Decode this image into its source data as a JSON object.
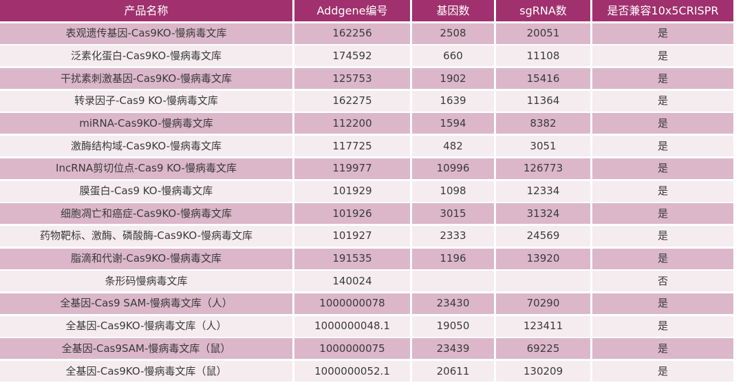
{
  "colors": {
    "header_bg": "#a0316e",
    "header_text": "#ffffff",
    "row_band_bg": "#dbb7c9",
    "row_alt_bg": "#f5ecf0",
    "body_text": "#3a3a3a"
  },
  "chart_data": {
    "type": "table",
    "columns": [
      "产品名称",
      "Addgene编号",
      "基因数",
      "sgRNA数",
      "是否兼容10x5CRISPR"
    ],
    "rows": [
      [
        "表观遗传基因-Cas9KO-慢病毒文库",
        "162256",
        "2508",
        "20051",
        "是"
      ],
      [
        "泛素化蛋白-Cas9KO-慢病毒文库",
        "174592",
        "660",
        "11108",
        "是"
      ],
      [
        "干扰素刺激基因-Cas9KO-慢病毒文库",
        "125753",
        "1902",
        "15416",
        "是"
      ],
      [
        "转录因子-Cas9 KO-慢病毒文库",
        "162275",
        "1639",
        "11364",
        "是"
      ],
      [
        "miRNA-Cas9KO-慢病毒文库",
        "112200",
        "1594",
        "8382",
        "是"
      ],
      [
        "激酶结构域-Cas9KO-慢病毒文库",
        "117725",
        "482",
        "3051",
        "是"
      ],
      [
        "IncRNA剪切位点-Cas9 KO-慢病毒文库",
        "119977",
        "10996",
        "126773",
        "是"
      ],
      [
        "膜蛋白-Cas9 KO-慢病毒文库",
        "101929",
        "1098",
        "12334",
        "是"
      ],
      [
        "细胞凋亡和癌症-Cas9KO-慢病毒文库",
        "101926",
        "3015",
        "31324",
        "是"
      ],
      [
        "药物靶标、激酶、磷酸酶-Cas9KO-慢病毒文库",
        "101927",
        "2333",
        "24569",
        "是"
      ],
      [
        "脂滴和代谢-Cas9KO-慢病毒文库",
        "191535",
        "1196",
        "13920",
        "是"
      ],
      [
        "条形码慢病毒文库",
        "140024",
        "",
        "",
        "否"
      ],
      [
        "全基因-Cas9 SAM-慢病毒文库（人）",
        "1000000078",
        "23430",
        "70290",
        "是"
      ],
      [
        "全基因-Cas9KO-慢病毒文库（人）",
        "1000000048.1",
        "19050",
        "123411",
        "是"
      ],
      [
        "全基因-Cas9SAM-慢病毒文库（鼠）",
        "1000000075",
        "23439",
        "69225",
        "是"
      ],
      [
        "全基因-Cas9KO-慢病毒文库（鼠）",
        "1000000052.1",
        "20611",
        "130209",
        "是"
      ]
    ]
  }
}
